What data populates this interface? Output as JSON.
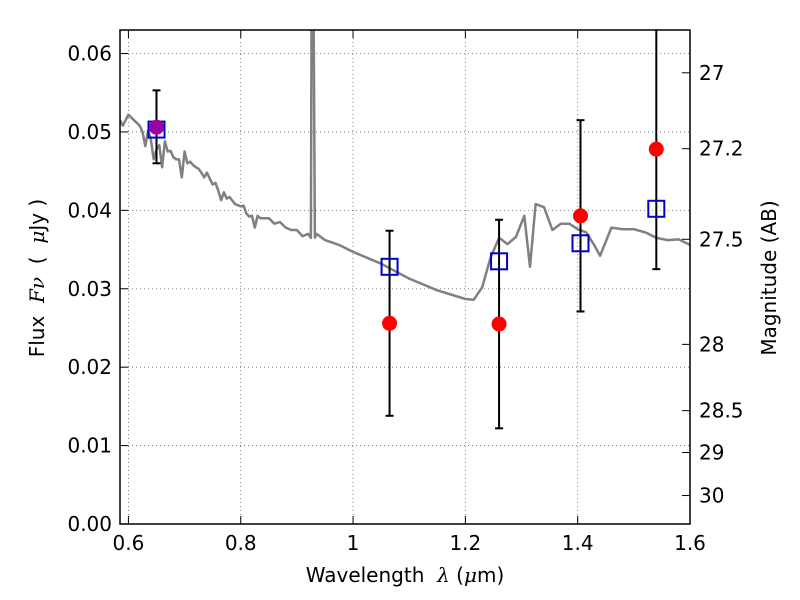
{
  "chart_data": {
    "type": "scatter",
    "xlabel": "Wavelength",
    "xlabel_symbol": "λ",
    "xlabel_unit_open": "(",
    "xlabel_unit_mu": "μ",
    "xlabel_unit_rest": "m)",
    "ylabel": "Flux",
    "ylabel_symbol": "Fν",
    "ylabel_unit_open": "(",
    "ylabel_unit_mu": "μ",
    "ylabel_unit_rest": "Jy )",
    "y2label": "Magnitude (AB)",
    "xlim": [
      0.585,
      1.6
    ],
    "ylim": [
      0.0,
      0.063
    ],
    "grid": true,
    "x_ticks": [
      {
        "value": 0.6,
        "label": "0.6"
      },
      {
        "value": 0.8,
        "label": "0.8"
      },
      {
        "value": 1.0,
        "label": "1"
      },
      {
        "value": 1.2,
        "label": "1.2"
      },
      {
        "value": 1.4,
        "label": "1.4"
      },
      {
        "value": 1.6,
        "label": "1.6"
      }
    ],
    "y_ticks": [
      {
        "value": 0.0,
        "label": "0.00"
      },
      {
        "value": 0.01,
        "label": "0.01"
      },
      {
        "value": 0.02,
        "label": "0.02"
      },
      {
        "value": 0.03,
        "label": "0.03"
      },
      {
        "value": 0.04,
        "label": "0.04"
      },
      {
        "value": 0.05,
        "label": "0.05"
      },
      {
        "value": 0.06,
        "label": "0.06"
      }
    ],
    "y2_ticks": [
      {
        "mag": 27,
        "label": "27"
      },
      {
        "mag": 27.2,
        "label": "27.2"
      },
      {
        "mag": 27.5,
        "label": "27.5"
      },
      {
        "mag": 28,
        "label": "28"
      },
      {
        "mag": 28.5,
        "label": "28.5"
      },
      {
        "mag": 29,
        "label": "29"
      },
      {
        "mag": 30,
        "label": "30"
      }
    ],
    "series": [
      {
        "name": "model spectrum",
        "kind": "line",
        "color": "#808080",
        "x": [
          0.585,
          0.59,
          0.6,
          0.61,
          0.62,
          0.625,
          0.63,
          0.635,
          0.64,
          0.645,
          0.65,
          0.655,
          0.66,
          0.665,
          0.67,
          0.675,
          0.68,
          0.685,
          0.69,
          0.695,
          0.7,
          0.705,
          0.71,
          0.715,
          0.72,
          0.725,
          0.73,
          0.735,
          0.74,
          0.745,
          0.75,
          0.755,
          0.76,
          0.765,
          0.77,
          0.775,
          0.78,
          0.79,
          0.8,
          0.805,
          0.81,
          0.815,
          0.82,
          0.825,
          0.83,
          0.835,
          0.84,
          0.85,
          0.86,
          0.87,
          0.88,
          0.89,
          0.9,
          0.91,
          0.92,
          0.925,
          0.926,
          0.928,
          0.93,
          0.932,
          0.935,
          0.95,
          0.975,
          1.0,
          1.05,
          1.1,
          1.15,
          1.2,
          1.215,
          1.23,
          1.245,
          1.26,
          1.275,
          1.29,
          1.305,
          1.315,
          1.325,
          1.34,
          1.355,
          1.37,
          1.385,
          1.4,
          1.415,
          1.43,
          1.44,
          1.46,
          1.48,
          1.5,
          1.52,
          1.54,
          1.56,
          1.58,
          1.6
        ],
        "y": [
          0.0515,
          0.0508,
          0.0522,
          0.0515,
          0.0508,
          0.05,
          0.0482,
          0.0502,
          0.049,
          0.0465,
          0.0478,
          0.0483,
          0.0455,
          0.0488,
          0.0475,
          0.0476,
          0.0468,
          0.0465,
          0.0465,
          0.0442,
          0.0475,
          0.046,
          0.0462,
          0.0458,
          0.0455,
          0.0453,
          0.0448,
          0.0442,
          0.0448,
          0.044,
          0.0433,
          0.0435,
          0.0425,
          0.0413,
          0.0423,
          0.0415,
          0.0417,
          0.0408,
          0.0405,
          0.0406,
          0.0396,
          0.0392,
          0.0393,
          0.0378,
          0.0393,
          0.039,
          0.039,
          0.039,
          0.0383,
          0.0385,
          0.0378,
          0.0375,
          0.0375,
          0.0367,
          0.037,
          0.0365,
          0.063,
          0.063,
          0.063,
          0.0365,
          0.037,
          0.0362,
          0.0356,
          0.0347,
          0.0332,
          0.0313,
          0.0298,
          0.0287,
          0.0286,
          0.0302,
          0.034,
          0.0365,
          0.0357,
          0.0366,
          0.0393,
          0.0328,
          0.0408,
          0.0404,
          0.0375,
          0.0383,
          0.0383,
          0.0376,
          0.0372,
          0.0355,
          0.0342,
          0.0378,
          0.0376,
          0.0376,
          0.0372,
          0.0365,
          0.0362,
          0.0363,
          0.0356
        ]
      },
      {
        "name": "model photometry",
        "kind": "open-square",
        "color": "#0000cc",
        "x": [
          0.65,
          1.065,
          1.26,
          1.405,
          1.54
        ],
        "y": [
          0.0503,
          0.0328,
          0.0335,
          0.0358,
          0.0402
        ]
      },
      {
        "name": "observed photometry",
        "kind": "filled-circle",
        "color": "#ff0000",
        "x": [
          0.65,
          1.065,
          1.26,
          1.405,
          1.54
        ],
        "y": [
          0.0506,
          0.0256,
          0.0255,
          0.0393,
          0.0478
        ],
        "yerr_low": [
          0.0046,
          0.0118,
          0.0133,
          0.0122,
          0.0153
        ],
        "yerr_high": [
          0.0047,
          0.0118,
          0.0133,
          0.0122,
          0.0153
        ]
      },
      {
        "name": "overlap marker",
        "kind": "filled-circle",
        "color": "#9900aa",
        "x": [
          0.65
        ],
        "y": [
          0.0506
        ]
      }
    ]
  }
}
